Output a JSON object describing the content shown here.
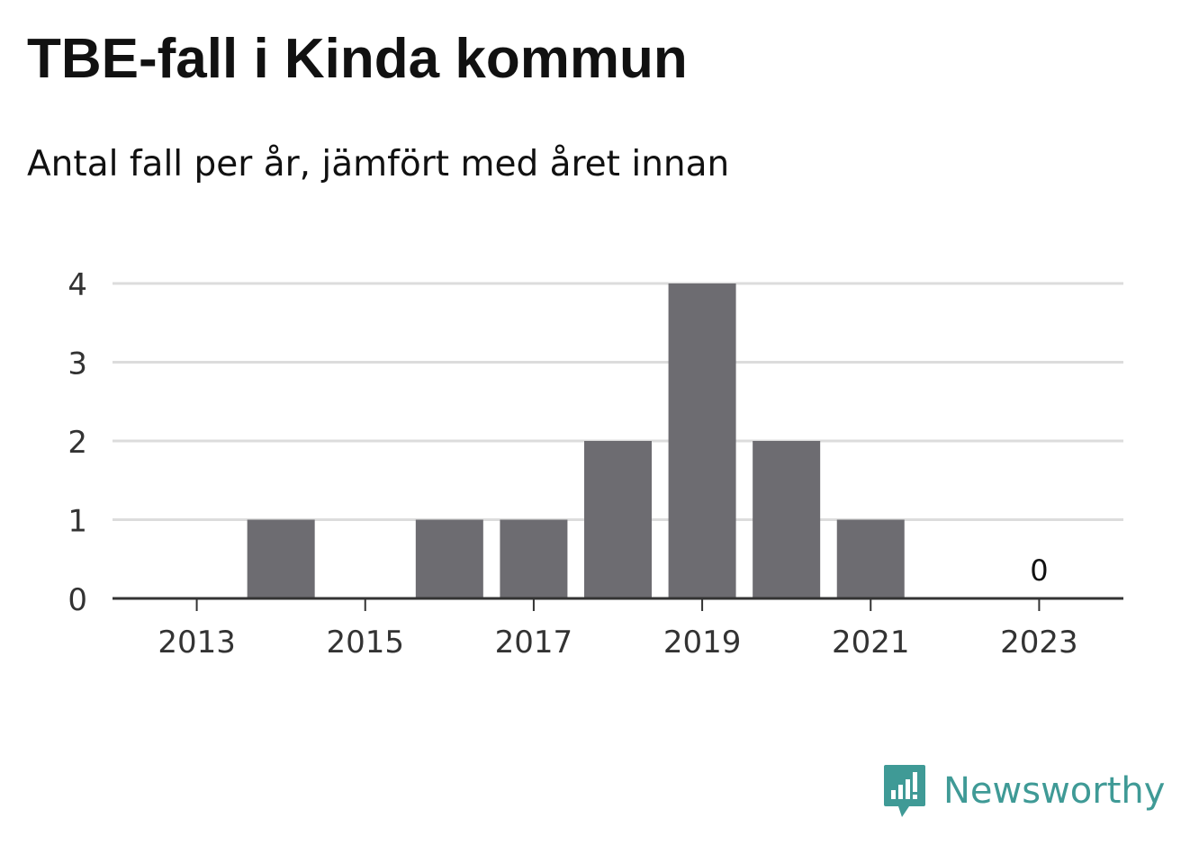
{
  "title": "TBE-fall i Kinda kommun",
  "subtitle": "Antal fall per år, jämfört med året innan",
  "brand": {
    "name": "Newsworthy",
    "icon": "newsworthy-logo-icon",
    "color": "#3f9a96"
  },
  "chart_data": {
    "type": "bar",
    "categories": [
      "2013",
      "2014",
      "2015",
      "2016",
      "2017",
      "2018",
      "2019",
      "2020",
      "2021",
      "2022",
      "2023"
    ],
    "values": [
      0,
      1,
      0,
      1,
      1,
      2,
      4,
      2,
      1,
      0,
      0
    ],
    "x_tick_labels": [
      "2013",
      "2015",
      "2017",
      "2019",
      "2021",
      "2023"
    ],
    "y_ticks": [
      "0",
      "1",
      "2",
      "3",
      "4"
    ],
    "ylim": [
      0,
      4
    ],
    "grid": true,
    "bar_color": "#6d6c71",
    "annotations": [
      {
        "category": "2023",
        "text": "0"
      }
    ]
  }
}
